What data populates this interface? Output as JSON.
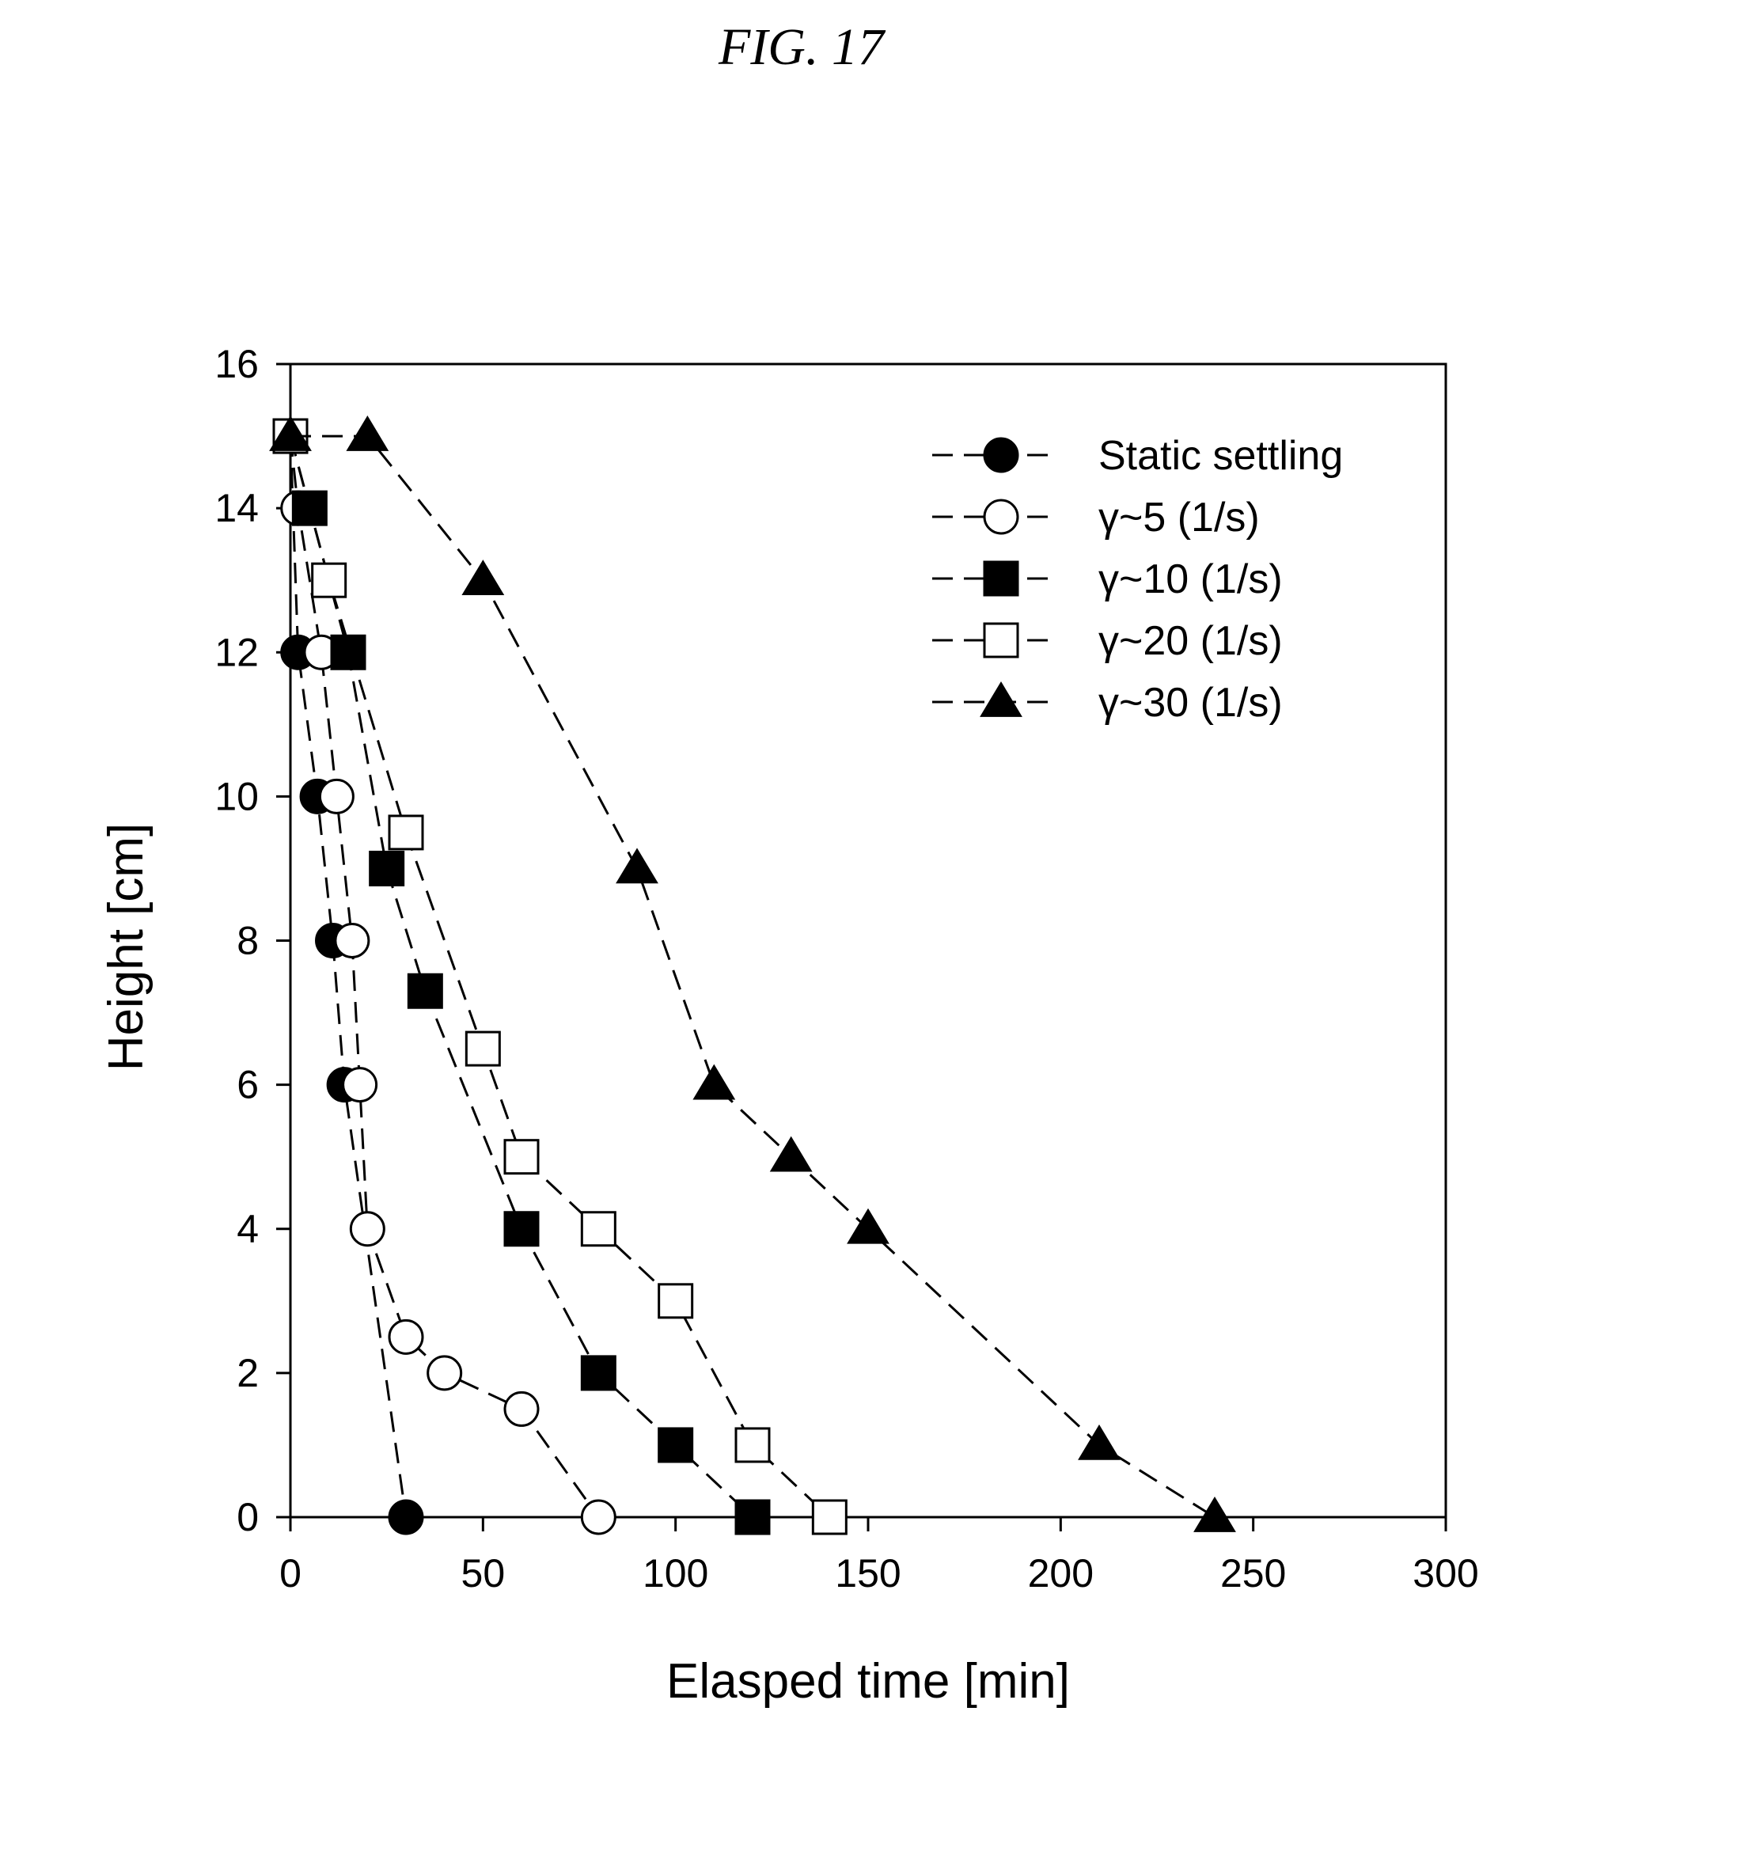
{
  "figure": {
    "label": "FIG. 17"
  },
  "chart_data": {
    "type": "line",
    "xlabel": "Elasped time [min]",
    "ylabel": "Height [cm]",
    "xlim": [
      0,
      300
    ],
    "ylim": [
      0,
      16
    ],
    "xticks": [
      0,
      50,
      100,
      150,
      200,
      250,
      300
    ],
    "yticks": [
      0,
      2,
      4,
      6,
      8,
      10,
      12,
      14,
      16
    ],
    "grid": false,
    "legend_position": "top-right",
    "line_style": "dashed",
    "series": [
      {
        "name": "Static settling",
        "marker": "circle",
        "filled": true,
        "points": [
          [
            0,
            15
          ],
          [
            2,
            12
          ],
          [
            7,
            10
          ],
          [
            11,
            8
          ],
          [
            14,
            6
          ],
          [
            30,
            0
          ]
        ]
      },
      {
        "name": "γ~5 (1/s)",
        "marker": "circle",
        "filled": false,
        "points": [
          [
            0,
            15
          ],
          [
            2,
            14
          ],
          [
            8,
            12
          ],
          [
            12,
            10
          ],
          [
            16,
            8
          ],
          [
            18,
            6
          ],
          [
            20,
            4
          ],
          [
            30,
            2.5
          ],
          [
            40,
            2
          ],
          [
            60,
            1.5
          ],
          [
            80,
            0
          ]
        ]
      },
      {
        "name": "γ~10 (1/s)",
        "marker": "square",
        "filled": true,
        "points": [
          [
            0,
            15
          ],
          [
            5,
            14
          ],
          [
            15,
            12
          ],
          [
            25,
            9
          ],
          [
            35,
            7.3
          ],
          [
            60,
            4
          ],
          [
            80,
            2
          ],
          [
            100,
            1
          ],
          [
            120,
            0
          ]
        ]
      },
      {
        "name": "γ~20 (1/s)",
        "marker": "square",
        "filled": false,
        "points": [
          [
            0,
            15
          ],
          [
            10,
            13
          ],
          [
            30,
            9.5
          ],
          [
            50,
            6.5
          ],
          [
            60,
            5
          ],
          [
            80,
            4
          ],
          [
            100,
            3
          ],
          [
            120,
            1
          ],
          [
            140,
            0
          ]
        ]
      },
      {
        "name": "γ~30 (1/s)",
        "marker": "triangle",
        "filled": true,
        "points": [
          [
            0,
            15
          ],
          [
            20,
            15
          ],
          [
            50,
            13
          ],
          [
            90,
            9
          ],
          [
            110,
            6
          ],
          [
            130,
            5
          ],
          [
            150,
            4
          ],
          [
            210,
            1
          ],
          [
            240,
            0
          ]
        ]
      }
    ]
  }
}
